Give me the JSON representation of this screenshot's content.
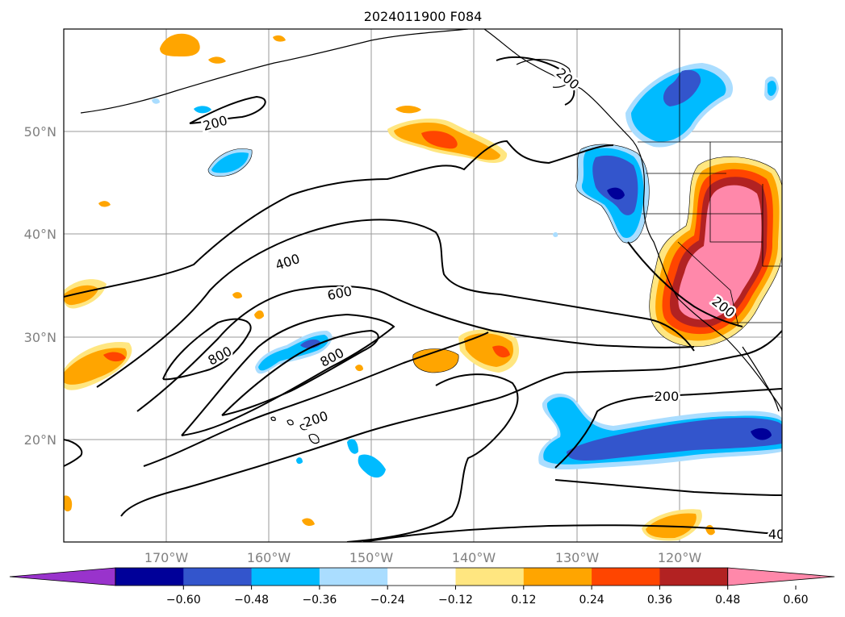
{
  "title": "2024011900 F084",
  "map": {
    "lon_range": [
      -180,
      -110
    ],
    "lat_range": [
      10,
      60
    ],
    "projection": "cylindrical",
    "grid": true,
    "lon_labels": [
      "170°W",
      "160°W",
      "150°W",
      "140°W",
      "130°W",
      "120°W"
    ],
    "lat_labels": [
      "20°N",
      "30°N",
      "40°N",
      "50°N"
    ],
    "contour_labels": [
      "200",
      "200",
      "400",
      "600",
      "800",
      "800",
      "200",
      "200",
      "200",
      "40"
    ]
  },
  "colorbar": {
    "tick_labels": [
      "−0.60",
      "−0.48",
      "−0.36",
      "−0.24",
      "−0.12",
      "0.12",
      "0.24",
      "0.36",
      "0.48",
      "0.60"
    ],
    "colors": [
      "#9933cc",
      "#000099",
      "#3355cc",
      "#00bbff",
      "#aaddff",
      "#ffffff",
      "#ffe680",
      "#ffa500",
      "#ff4500",
      "#b22222",
      "#ff88aa"
    ],
    "extend": "both"
  },
  "colors": {
    "contour_line": "#000000",
    "grid_line": "#9a9a9a",
    "axis_label": "#808080"
  }
}
